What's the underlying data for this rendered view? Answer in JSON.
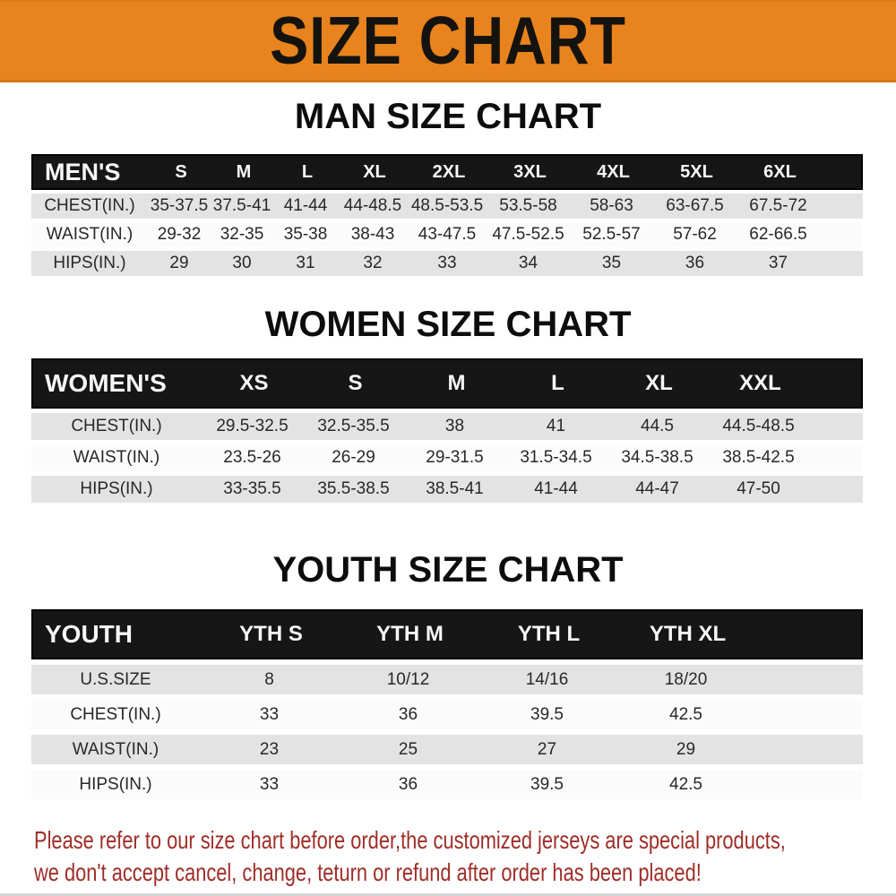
{
  "banner": {
    "title": "SIZE CHART"
  },
  "chart_data": [
    {
      "type": "table",
      "title": "MAN SIZE CHART",
      "header_label": "MEN'S",
      "columns": [
        "S",
        "M",
        "L",
        "XL",
        "2XL",
        "3XL",
        "4XL",
        "5XL",
        "6XL"
      ],
      "rows": [
        {
          "label": "CHEST(IN.)",
          "values": [
            "35-37.5",
            "37.5-41",
            "41-44",
            "44-48.5",
            "48.5-53.5",
            "53.5-58",
            "58-63",
            "63-67.5",
            "67.5-72"
          ]
        },
        {
          "label": "WAIST(IN.)",
          "values": [
            "29-32",
            "32-35",
            "35-38",
            "38-43",
            "43-47.5",
            "47.5-52.5",
            "52.5-57",
            "57-62",
            "62-66.5"
          ]
        },
        {
          "label": "HIPS(IN.)",
          "values": [
            "29",
            "30",
            "31",
            "32",
            "33",
            "34",
            "35",
            "36",
            "37"
          ]
        }
      ]
    },
    {
      "type": "table",
      "title": "WOMEN SIZE CHART",
      "header_label": "WOMEN'S",
      "columns": [
        "XS",
        "S",
        "M",
        "L",
        "XL",
        "XXL"
      ],
      "rows": [
        {
          "label": "CHEST(IN.)",
          "values": [
            "29.5-32.5",
            "32.5-35.5",
            "38",
            "41",
            "44.5",
            "44.5-48.5"
          ]
        },
        {
          "label": "WAIST(IN.)",
          "values": [
            "23.5-26",
            "26-29",
            "29-31.5",
            "31.5-34.5",
            "34.5-38.5",
            "38.5-42.5"
          ]
        },
        {
          "label": "HIPS(IN.)",
          "values": [
            "33-35.5",
            "35.5-38.5",
            "38.5-41",
            "41-44",
            "44-47",
            "47-50"
          ]
        }
      ]
    },
    {
      "type": "table",
      "title": "YOUTH SIZE CHART",
      "header_label": "YOUTH",
      "columns": [
        "YTH S",
        "YTH M",
        "YTH L",
        "YTH XL"
      ],
      "rows": [
        {
          "label": "U.S.SIZE",
          "values": [
            "8",
            "10/12",
            "14/16",
            "18/20"
          ]
        },
        {
          "label": "CHEST(IN.)",
          "values": [
            "33",
            "36",
            "39.5",
            "42.5"
          ]
        },
        {
          "label": "WAIST(IN.)",
          "values": [
            "23",
            "25",
            "27",
            "29"
          ]
        },
        {
          "label": "HIPS(IN.)",
          "values": [
            "33",
            "36",
            "39.5",
            "42.5"
          ]
        }
      ]
    }
  ],
  "footer": {
    "line1": "Please refer to our size chart before order,the customized jerseys are special products,",
    "line2": "we don't accept cancel, change, teturn or refund after order has been placed!"
  },
  "colors": {
    "banner_bg": "#e8831d",
    "banner_text": "#151310",
    "table_header_bg": "#161616",
    "table_header_text": "#f6f6f6",
    "row_gray": "#e3e3e3",
    "row_white": "#fbfbfb",
    "cell_text": "#282828",
    "heading_text": "#0d0d0d",
    "footer_text": "#9e2d28"
  }
}
